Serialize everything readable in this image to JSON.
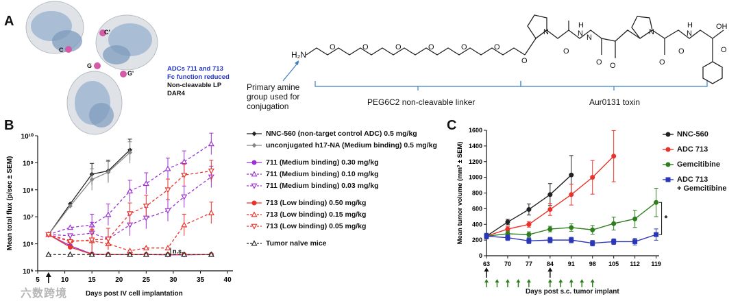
{
  "panel_labels": {
    "a": "A",
    "b": "B",
    "c": "C"
  },
  "structure": {
    "adc_lines": [
      "ADCs 711 and 713",
      "Fc function reduced",
      "Non-cleavable LP",
      "DAR4"
    ],
    "site_labels": [
      "C'",
      "C",
      "G",
      "G'"
    ],
    "amine_label": "H₂N",
    "primary_amine_note": [
      "Primary amine",
      "group used for",
      "conjugation"
    ],
    "linker_label": "PEG6C2 non-cleavable linker",
    "toxin_label": "Aur0131 toxin",
    "atoms": {
      "O": "O",
      "N": "N",
      "H": "H",
      "OH": "OH"
    }
  },
  "watermark": "六数跨境",
  "colors": {
    "adc711": "#9b30d0",
    "adc713": "#e8322a",
    "black": "#222222",
    "grey": "#888888",
    "gemcitibine": "#2e7d1e",
    "combo": "#2a36b8",
    "linker": "#3d7fc0"
  },
  "chart_data": [
    {
      "type": "line",
      "title": "",
      "xlabel": "Days post IV cell implantation",
      "ylabel": "Mean total flux (p/sec ± SEM)",
      "yscale": "log",
      "xlim": [
        5,
        41
      ],
      "ylim": [
        100000,
        10000000000
      ],
      "xticks": [
        "5",
        "10",
        "15",
        "20",
        "25",
        "30",
        "35",
        "40"
      ],
      "yticks": [
        "10⁵",
        "10⁶",
        "10⁷",
        "10⁸",
        "10⁹",
        "10¹⁰"
      ],
      "annotation": "n.s.",
      "series": [
        {
          "name": "NNC-560 (non-target control ADC) 0.5 mg/kg",
          "color": "#222222",
          "dash": false,
          "marker": "diamond",
          "x": [
            7,
            11,
            15,
            18,
            22
          ],
          "y": [
            2200000,
            30000000,
            380000000,
            500000000,
            3000000000
          ]
        },
        {
          "name": "unconjugated h17-NA (Medium binding) 0.5 mg/kg",
          "color": "#888888",
          "dash": false,
          "marker": "diamond",
          "x": [
            7,
            11,
            15,
            18,
            22
          ],
          "y": [
            2200000,
            25000000,
            240000000,
            450000000,
            2400000000
          ]
        },
        {
          "name": "711 (Medium binding) 0.30 mg/kg",
          "color": "#9b30d0",
          "dash": false,
          "marker": "circle",
          "x": [
            7,
            11,
            15,
            18,
            22,
            25,
            29,
            32,
            37
          ],
          "y": [
            2200000,
            850000,
            420000,
            400000,
            400000,
            400000,
            390000,
            390000,
            400000
          ]
        },
        {
          "name": "711 (Medium binding) 0.10 mg/kg",
          "color": "#9b30d0",
          "dash": true,
          "marker": "triangle-up",
          "x": [
            7,
            11,
            15,
            18,
            22,
            25,
            29,
            32,
            37
          ],
          "y": [
            2200000,
            4000000,
            5000000,
            12000000,
            90000000,
            170000000,
            600000000,
            1100000000,
            5000000000
          ]
        },
        {
          "name": "711 (Medium binding) 0.03 mg/kg",
          "color": "#9b30d0",
          "dash": true,
          "marker": "triangle-down",
          "x": [
            7,
            11,
            15,
            18,
            22,
            25,
            29,
            32,
            37
          ],
          "y": [
            2200000,
            2000000,
            2500000,
            1500000,
            5000000,
            9000000,
            17000000,
            55000000,
            300000000
          ]
        },
        {
          "name": "713 (Low binding) 0.50 mg/kg",
          "color": "#e8322a",
          "dash": false,
          "marker": "circle",
          "x": [
            7,
            11,
            15,
            18,
            22,
            25,
            29,
            32,
            37
          ],
          "y": [
            2200000,
            750000,
            410000,
            400000,
            400000,
            400000,
            400000,
            400000,
            400000
          ]
        },
        {
          "name": "713 (Low binding) 0.15 mg/kg",
          "color": "#e8322a",
          "dash": true,
          "marker": "triangle-up",
          "x": [
            7,
            11,
            15,
            18,
            22,
            25,
            29,
            32,
            37
          ],
          "y": [
            2200000,
            1300000,
            1300000,
            1000000,
            550000,
            700000,
            700000,
            5000000,
            14000000
          ]
        },
        {
          "name": "713 (Low binding) 0.05 mg/kg",
          "color": "#e8322a",
          "dash": true,
          "marker": "triangle-down",
          "x": [
            7,
            11,
            15,
            18,
            22,
            25,
            29,
            32,
            37
          ],
          "y": [
            2200000,
            1200000,
            1400000,
            1500000,
            13000000,
            25000000,
            100000000,
            350000000,
            500000000
          ]
        },
        {
          "name": "Tumor naïve mice",
          "color": "#222222",
          "dash": true,
          "marker": "triangle-up",
          "x": [
            7,
            11,
            15,
            18,
            22,
            25,
            29,
            32,
            37
          ],
          "y": [
            400000,
            400000,
            400000,
            400000,
            400000,
            400000,
            400000,
            400000,
            400000
          ]
        }
      ]
    },
    {
      "type": "line",
      "title": "",
      "xlabel": "Days post s.c. tumor implant",
      "ylabel": "Mean tumor volume (mm³ ± SEM)",
      "xlim": [
        63,
        120
      ],
      "ylim": [
        0,
        1600
      ],
      "xticks": [
        "63",
        "70",
        "77",
        "84",
        "91",
        "98",
        "105",
        "112",
        "119"
      ],
      "yticks": [
        "0",
        "200",
        "400",
        "600",
        "800",
        "1000",
        "1200",
        "1400",
        "1600"
      ],
      "annotation": "*",
      "series": [
        {
          "name": "NNC-560",
          "color": "#222222",
          "x": [
            63,
            70,
            77,
            84,
            91
          ],
          "y": [
            250,
            430,
            590,
            780,
            1030
          ]
        },
        {
          "name": "ADC 713",
          "color": "#e8322a",
          "x": [
            63,
            70,
            77,
            84,
            91,
            98,
            105
          ],
          "y": [
            250,
            340,
            400,
            590,
            780,
            1000,
            1270
          ]
        },
        {
          "name": "Gemcitibine",
          "color": "#2e7d1e",
          "x": [
            63,
            70,
            77,
            84,
            91,
            98,
            105,
            112,
            119
          ],
          "y": [
            250,
            280,
            270,
            340,
            360,
            330,
            410,
            470,
            680
          ]
        },
        {
          "name": "ADC 713 + Gemcitibine",
          "legend_lines": [
            "ADC 713",
            "+ Gemcitibine"
          ],
          "color": "#2a36b8",
          "x": [
            63,
            70,
            77,
            84,
            91,
            98,
            105,
            112,
            119
          ],
          "y": [
            250,
            230,
            190,
            200,
            200,
            160,
            180,
            180,
            270
          ]
        }
      ]
    }
  ]
}
